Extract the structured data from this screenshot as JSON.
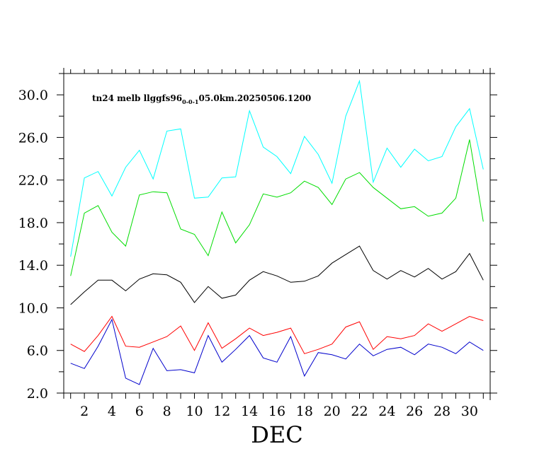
{
  "chart_data": {
    "type": "line",
    "title_main": "tn24  melb  llggfs96",
    "title_sub": "0-0-1",
    "title_rest": "05.0km.20250506.1200",
    "xlabel": "DEC",
    "ylabel": "",
    "xlim": [
      0.5,
      31.5
    ],
    "ylim": [
      2.0,
      32.0
    ],
    "x_ticks": [
      2,
      4,
      6,
      8,
      10,
      12,
      14,
      16,
      18,
      20,
      22,
      24,
      26,
      28,
      30
    ],
    "x_tick_labels": [
      "2",
      "4",
      "6",
      "8",
      "10",
      "12",
      "14",
      "16",
      "18",
      "20",
      "22",
      "24",
      "26",
      "28",
      "30"
    ],
    "y_ticks": [
      2,
      6,
      10,
      14,
      18,
      22,
      26,
      30
    ],
    "y_tick_labels": [
      "2.0",
      "6.0",
      "10.0",
      "14.0",
      "18.0",
      "22.0",
      "26.0",
      "30.0"
    ],
    "grid": false,
    "x": [
      1,
      2,
      3,
      4,
      5,
      6,
      7,
      8,
      9,
      10,
      11,
      12,
      13,
      14,
      15,
      16,
      17,
      18,
      19,
      20,
      21,
      22,
      23,
      24,
      25,
      26,
      27,
      28,
      29,
      30,
      31
    ],
    "series": [
      {
        "color": "#00ffff",
        "values": [
          14.8,
          22.2,
          22.8,
          20.5,
          23.2,
          24.8,
          22.1,
          26.6,
          26.8,
          20.3,
          20.4,
          22.2,
          22.3,
          28.5,
          25.1,
          24.2,
          22.6,
          26.1,
          24.4,
          21.7,
          28.0,
          31.3,
          21.8,
          25.0,
          23.2,
          24.9,
          23.8,
          24.2,
          27.0,
          28.7,
          23.0
        ]
      },
      {
        "color": "#00dd00",
        "values": [
          13.0,
          18.9,
          19.6,
          17.1,
          15.8,
          20.6,
          20.9,
          20.8,
          17.4,
          16.9,
          14.9,
          19.0,
          16.1,
          17.8,
          20.7,
          20.4,
          20.8,
          21.9,
          21.3,
          19.7,
          22.1,
          22.7,
          21.3,
          20.3,
          19.3,
          19.5,
          18.6,
          18.9,
          20.3,
          25.8,
          18.1
        ]
      },
      {
        "color": "#000000",
        "values": [
          10.3,
          11.5,
          12.6,
          12.6,
          11.6,
          12.7,
          13.2,
          13.1,
          12.4,
          10.5,
          12.0,
          10.9,
          11.2,
          12.6,
          13.4,
          13.0,
          12.4,
          12.5,
          13.0,
          14.2,
          15.0,
          15.8,
          13.5,
          12.7,
          13.5,
          12.9,
          13.7,
          12.7,
          13.4,
          15.1,
          12.6
        ]
      },
      {
        "color": "#ff0000",
        "values": [
          6.6,
          5.9,
          7.4,
          9.2,
          6.4,
          6.3,
          6.8,
          7.3,
          8.3,
          6.0,
          8.6,
          6.2,
          7.1,
          8.1,
          7.4,
          7.7,
          8.1,
          5.7,
          6.1,
          6.6,
          8.2,
          8.7,
          6.1,
          7.3,
          7.1,
          7.4,
          8.5,
          7.8,
          8.5,
          9.2,
          8.8
        ]
      },
      {
        "color": "#0000cc",
        "values": [
          4.8,
          4.3,
          6.4,
          8.9,
          3.4,
          2.8,
          6.2,
          4.1,
          4.2,
          3.9,
          7.4,
          4.9,
          6.1,
          7.4,
          5.3,
          4.9,
          7.3,
          3.6,
          5.8,
          5.6,
          5.2,
          6.6,
          5.5,
          6.1,
          6.3,
          5.6,
          6.6,
          6.3,
          5.7,
          6.8,
          6.0
        ]
      }
    ]
  }
}
